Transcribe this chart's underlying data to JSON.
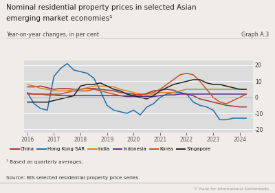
{
  "title_line1": "Nominal residential property prices in selected Asian",
  "title_line2": "emerging market economies¹",
  "subtitle": "Year-on-year changes, in per cent",
  "graph_label": "Graph A.3",
  "footnote1": "¹ Based on quarterly averages.",
  "footnote2": "Source: BIS selected residential property price series.",
  "footnote3": "© Bank for International Settlements",
  "ylim": [
    -22,
    23
  ],
  "yticks": [
    -20,
    -10,
    0,
    10,
    20
  ],
  "plot_bg": "#dcdcdc",
  "fig_bg": "#f0ede8",
  "series": {
    "China": {
      "color": "#a83232",
      "x": [
        2016.0,
        2016.25,
        2016.5,
        2016.75,
        2017.0,
        2017.25,
        2017.5,
        2017.75,
        2018.0,
        2018.25,
        2018.5,
        2018.75,
        2019.0,
        2019.25,
        2019.5,
        2019.75,
        2020.0,
        2020.25,
        2020.5,
        2020.75,
        2021.0,
        2021.25,
        2021.5,
        2021.75,
        2022.0,
        2022.25,
        2022.5,
        2022.75,
        2023.0,
        2023.25,
        2023.5,
        2023.75,
        2024.0,
        2024.25
      ],
      "y": [
        6.5,
        6.5,
        7,
        6,
        5,
        5.5,
        5.5,
        5,
        5,
        5.5,
        5.5,
        5,
        4.5,
        4,
        3,
        2.5,
        2,
        1,
        2.5,
        4,
        4.5,
        5,
        4.5,
        3,
        2,
        1,
        -1,
        -2,
        -3,
        -4,
        -5,
        -5.5,
        -6,
        -6
      ]
    },
    "Hong Kong SAR": {
      "color": "#1a6fad",
      "x": [
        2016.0,
        2016.25,
        2016.5,
        2016.75,
        2017.0,
        2017.25,
        2017.5,
        2017.75,
        2018.0,
        2018.25,
        2018.5,
        2018.75,
        2019.0,
        2019.25,
        2019.5,
        2019.75,
        2020.0,
        2020.25,
        2020.5,
        2020.75,
        2021.0,
        2021.25,
        2021.5,
        2021.75,
        2022.0,
        2022.25,
        2022.5,
        2022.75,
        2023.0,
        2023.25,
        2023.5,
        2023.75,
        2024.0,
        2024.25
      ],
      "y": [
        3,
        -4,
        -7,
        -8,
        13,
        18,
        21,
        17,
        16,
        15,
        12,
        4,
        -5,
        -8,
        -9,
        -10,
        -8,
        -11,
        -6,
        -4,
        0,
        2,
        3,
        3,
        2,
        -3,
        -5,
        -6,
        -8,
        -14,
        -14,
        -13,
        -13,
        -13
      ]
    },
    "India": {
      "color": "#d4851a",
      "x": [
        2016.0,
        2016.25,
        2016.5,
        2016.75,
        2017.0,
        2017.25,
        2017.5,
        2017.75,
        2018.0,
        2018.25,
        2018.5,
        2018.75,
        2019.0,
        2019.25,
        2019.5,
        2019.75,
        2020.0,
        2020.25,
        2020.5,
        2020.75,
        2021.0,
        2021.25,
        2021.5,
        2021.75,
        2022.0,
        2022.25,
        2022.5,
        2022.75,
        2023.0,
        2023.25,
        2023.5,
        2023.75,
        2024.0,
        2024.25
      ],
      "y": [
        8,
        7,
        5.5,
        5,
        4,
        4,
        4,
        5,
        5,
        6,
        7,
        7,
        7,
        6.5,
        5,
        4,
        3,
        2,
        1,
        2,
        3,
        3,
        3,
        4,
        5,
        5,
        5,
        5,
        5,
        5,
        5,
        5,
        5,
        5
      ]
    },
    "Indonesia": {
      "color": "#5b2d8e",
      "x": [
        2016.0,
        2016.25,
        2016.5,
        2016.75,
        2017.0,
        2017.25,
        2017.5,
        2017.75,
        2018.0,
        2018.25,
        2018.5,
        2018.75,
        2019.0,
        2019.25,
        2019.5,
        2019.75,
        2020.0,
        2020.25,
        2020.5,
        2020.75,
        2021.0,
        2021.25,
        2021.5,
        2021.75,
        2022.0,
        2022.25,
        2022.5,
        2022.75,
        2023.0,
        2023.25,
        2023.5,
        2023.75,
        2024.0,
        2024.25
      ],
      "y": [
        2.5,
        2,
        2,
        1.5,
        1.5,
        1,
        1,
        1,
        1,
        1,
        1,
        1,
        1,
        1,
        1,
        0.5,
        0.5,
        0.5,
        0.5,
        0.5,
        1,
        1.5,
        1.5,
        2,
        2,
        2,
        2,
        2,
        2,
        2,
        2,
        2,
        2,
        2
      ]
    },
    "Korea": {
      "color": "#c8501a",
      "x": [
        2016.0,
        2016.25,
        2016.5,
        2016.75,
        2017.0,
        2017.25,
        2017.5,
        2017.75,
        2018.0,
        2018.25,
        2018.5,
        2018.75,
        2019.0,
        2019.25,
        2019.5,
        2019.75,
        2020.0,
        2020.25,
        2020.5,
        2020.75,
        2021.0,
        2021.25,
        2021.5,
        2021.75,
        2022.0,
        2022.25,
        2022.5,
        2022.75,
        2023.0,
        2023.25,
        2023.5,
        2023.75,
        2024.0,
        2024.25
      ],
      "y": [
        2,
        2,
        2,
        2,
        2,
        2,
        3,
        4,
        4,
        4,
        5,
        4,
        3,
        2,
        1,
        1,
        1,
        2,
        2,
        3,
        5,
        8,
        11,
        14,
        15,
        14,
        10,
        5,
        0,
        -3,
        -4,
        -2,
        0,
        2
      ]
    },
    "Singapore": {
      "color": "#222222",
      "x": [
        2016.0,
        2016.25,
        2016.5,
        2016.75,
        2017.0,
        2017.25,
        2017.5,
        2017.75,
        2018.0,
        2018.25,
        2018.5,
        2018.75,
        2019.0,
        2019.25,
        2019.5,
        2019.75,
        2020.0,
        2020.25,
        2020.5,
        2020.75,
        2021.0,
        2021.25,
        2021.5,
        2021.75,
        2022.0,
        2022.25,
        2022.5,
        2022.75,
        2023.0,
        2023.25,
        2023.5,
        2023.75,
        2024.0,
        2024.25
      ],
      "y": [
        -3,
        -3,
        -3,
        -3,
        -2,
        -1,
        0,
        1,
        7,
        8,
        8,
        9,
        7,
        5,
        4,
        2,
        1,
        0,
        -1,
        1,
        4,
        6,
        8,
        9,
        10,
        11,
        11,
        9,
        8,
        8,
        7,
        6,
        5,
        5
      ]
    }
  },
  "xlim": [
    2015.88,
    2024.5
  ],
  "xticks": [
    2016,
    2017,
    2018,
    2019,
    2020,
    2021,
    2022,
    2023,
    2024
  ],
  "legend_order": [
    "China",
    "Hong Kong SAR",
    "India",
    "Indonesia",
    "Korea",
    "Singapore"
  ]
}
